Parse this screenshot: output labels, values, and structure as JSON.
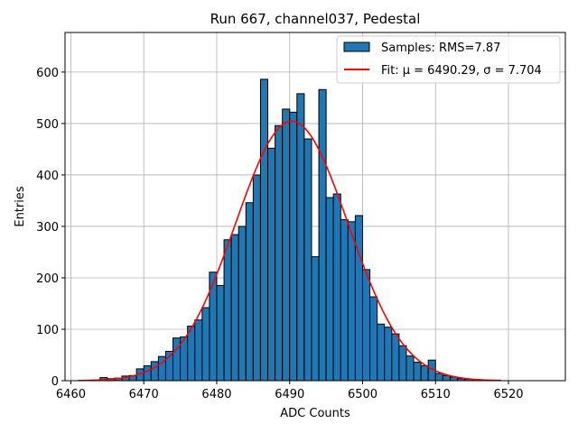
{
  "chart_data": {
    "type": "bar",
    "title": "Run 667, channel037, Pedestal",
    "xlabel": "ADC Counts",
    "ylabel": "Entries",
    "xlim": [
      6459.2,
      6527.8
    ],
    "ylim": [
      0,
      677
    ],
    "xticks": [
      6460,
      6470,
      6480,
      6490,
      6500,
      6510,
      6520
    ],
    "yticks": [
      0,
      100,
      200,
      300,
      400,
      500,
      600
    ],
    "grid": true,
    "legend_position": "top-right",
    "bin_width": 1,
    "bins": {
      "x_start": [
        6461,
        6462,
        6463,
        6464,
        6465,
        6466,
        6467,
        6468,
        6469,
        6470,
        6471,
        6472,
        6473,
        6474,
        6475,
        6476,
        6477,
        6478,
        6479,
        6480,
        6481,
        6482,
        6483,
        6484,
        6485,
        6486,
        6487,
        6488,
        6489,
        6490,
        6491,
        6492,
        6493,
        6494,
        6495,
        6496,
        6497,
        6498,
        6499,
        6500,
        6501,
        6502,
        6503,
        6504,
        6505,
        6506,
        6507,
        6508,
        6509,
        6510,
        6511,
        6512,
        6513,
        6514,
        6515,
        6516,
        6517,
        6518
      ],
      "counts": [
        0,
        0,
        1,
        6,
        4,
        5,
        9,
        10,
        23,
        29,
        37,
        47,
        57,
        83,
        85,
        106,
        118,
        142,
        211,
        185,
        274,
        284,
        300,
        346,
        400,
        586,
        452,
        496,
        528,
        522,
        558,
        470,
        241,
        566,
        356,
        363,
        313,
        309,
        321,
        216,
        163,
        110,
        104,
        91,
        68,
        48,
        36,
        29,
        40,
        14,
        10,
        7,
        4,
        3,
        2,
        1,
        0,
        0
      ]
    },
    "series": [
      {
        "name": "Samples: RMS=7.87",
        "kind": "histogram",
        "color": "#1f77b4",
        "edge_color": "#000000"
      },
      {
        "name": "Fit: μ = 6490.29, σ = 7.704",
        "kind": "gaussian-fit",
        "color": "#ff0000",
        "amplitude": 504.5,
        "mu": 6490.29,
        "sigma": 7.704,
        "x_range": [
          6461,
          6519
        ]
      }
    ]
  }
}
